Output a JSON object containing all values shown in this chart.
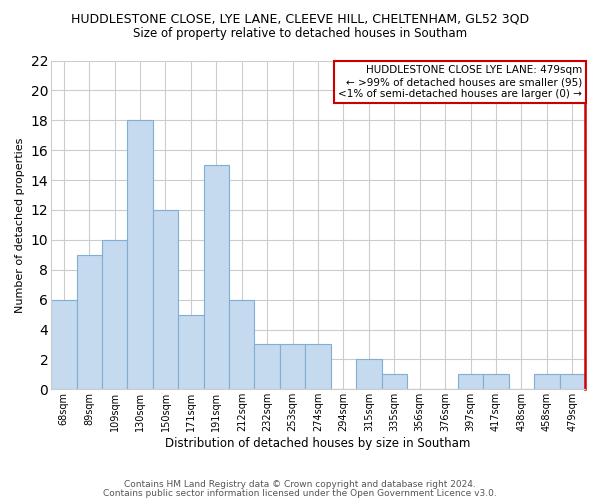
{
  "title": "HUDDLESTONE CLOSE, LYE LANE, CLEEVE HILL, CHELTENHAM, GL52 3QD",
  "subtitle": "Size of property relative to detached houses in Southam",
  "xlabel": "Distribution of detached houses by size in Southam",
  "ylabel": "Number of detached properties",
  "footnote1": "Contains HM Land Registry data © Crown copyright and database right 2024.",
  "footnote2": "Contains public sector information licensed under the Open Government Licence v3.0.",
  "categories": [
    "68sqm",
    "89sqm",
    "109sqm",
    "130sqm",
    "150sqm",
    "171sqm",
    "191sqm",
    "212sqm",
    "232sqm",
    "253sqm",
    "274sqm",
    "294sqm",
    "315sqm",
    "335sqm",
    "356sqm",
    "376sqm",
    "397sqm",
    "417sqm",
    "438sqm",
    "458sqm",
    "479sqm"
  ],
  "values": [
    6,
    9,
    10,
    18,
    12,
    5,
    15,
    6,
    3,
    3,
    3,
    0,
    2,
    1,
    0,
    0,
    1,
    1,
    0,
    1,
    1
  ],
  "bar_color": "#c5d9ef",
  "bar_edge_color": "#7fafd4",
  "highlight_line_color": "#cc0000",
  "ylim": [
    0,
    22
  ],
  "yticks": [
    0,
    2,
    4,
    6,
    8,
    10,
    12,
    14,
    16,
    18,
    20,
    22
  ],
  "annotation_box_text": "HUDDLESTONE CLOSE LYE LANE: 479sqm\n← >99% of detached houses are smaller (95)\n<1% of semi-detached houses are larger (0) →",
  "annotation_box_color": "#ffffff",
  "annotation_box_edge_color": "#cc0000",
  "grid_color": "#cccccc",
  "title_fontsize": 9,
  "subtitle_fontsize": 8.5,
  "annotation_fontsize": 7.5,
  "ylabel_fontsize": 8,
  "xlabel_fontsize": 8.5,
  "footnote_fontsize": 6.5
}
